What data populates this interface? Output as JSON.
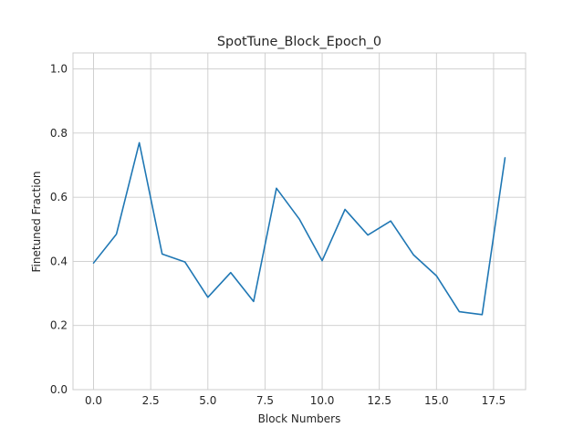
{
  "chart_data": {
    "type": "line",
    "title": "SpotTune_Block_Epoch_0",
    "xlabel": "Block Numbers",
    "ylabel": "Finetuned Fraction",
    "xlim": [
      -0.9,
      18.9
    ],
    "ylim": [
      0.0,
      1.05
    ],
    "xticks": [
      0.0,
      2.5,
      5.0,
      7.5,
      10.0,
      12.5,
      15.0,
      17.5
    ],
    "xtick_labels": [
      "0.0",
      "2.5",
      "5.0",
      "7.5",
      "10.0",
      "12.5",
      "15.0",
      "17.5"
    ],
    "yticks": [
      0.0,
      0.2,
      0.4,
      0.6,
      0.8,
      1.0
    ],
    "ytick_labels": [
      "0.0",
      "0.2",
      "0.4",
      "0.6",
      "0.8",
      "1.0"
    ],
    "grid": true,
    "color": "#1f77b4",
    "series": [
      {
        "x": [
          0,
          1,
          2,
          3,
          4,
          5,
          6,
          7,
          8,
          9,
          10,
          11,
          12,
          13,
          14,
          15,
          16,
          17,
          18
        ],
        "values": [
          0.395,
          0.485,
          0.77,
          0.423,
          0.398,
          0.288,
          0.365,
          0.275,
          0.628,
          0.532,
          0.402,
          0.562,
          0.482,
          0.526,
          0.42,
          0.355,
          0.243,
          0.234,
          0.723
        ]
      }
    ]
  }
}
